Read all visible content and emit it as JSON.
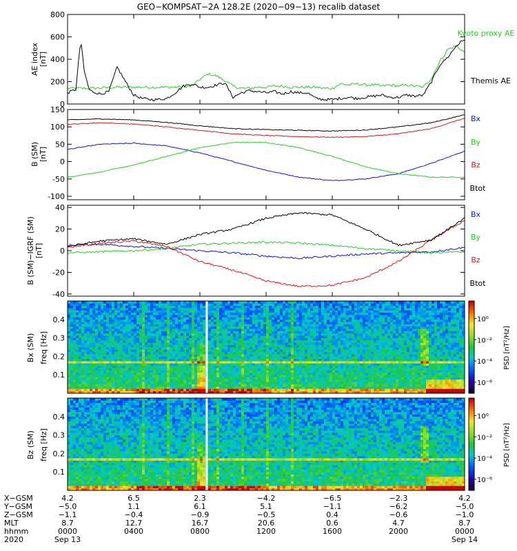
{
  "title": "GEO−KOMPSAT−2A 128.2E (2020−09−13) recalib dataset",
  "colors": {
    "black": "#000000",
    "red": "#dd1111",
    "green": "#22cc22",
    "blue": "#1111cc",
    "white": "#ffffff"
  },
  "chart_data": [
    {
      "id": "ae",
      "type": "line",
      "ylabel": "AE index",
      "yunit": "[nT]",
      "ylim": [
        0,
        800
      ],
      "yticks": [
        "0",
        "200",
        "400",
        "600",
        "800"
      ],
      "xlim": [
        0,
        24
      ],
      "series": [
        {
          "name": "Kyoto proxy AE",
          "color": "#22cc22",
          "x": [
            0,
            1.5,
            3,
            4.5,
            5.5,
            6.5,
            7.5,
            8,
            8.5,
            9,
            9.5,
            10,
            10.5,
            11,
            11.5,
            12,
            12.5,
            13,
            13.5,
            14,
            14.5,
            15,
            15.5,
            16,
            16.5,
            17,
            17.5,
            18,
            18.5,
            19,
            19.5,
            20,
            20.5,
            21,
            21.5,
            22,
            22.5,
            23,
            23.5,
            24
          ],
          "y": [
            140,
            140,
            150,
            150,
            150,
            150,
            160,
            220,
            270,
            250,
            210,
            160,
            140,
            140,
            150,
            150,
            160,
            160,
            150,
            150,
            150,
            150,
            140,
            140,
            180,
            170,
            180,
            170,
            170,
            160,
            170,
            160,
            170,
            160,
            150,
            230,
            380,
            490,
            520,
            460
          ]
        },
        {
          "name": "Themis AE",
          "color": "#000000",
          "x": [
            0,
            0.5,
            0.8,
            1,
            1.3,
            1.5,
            2,
            2.5,
            3,
            3.5,
            4,
            4.5,
            5,
            5.5,
            6,
            6.5,
            7,
            7.5,
            8,
            8.5,
            9,
            9.5,
            10,
            10.5,
            11,
            11.5,
            12,
            12.5,
            13,
            13.5,
            14,
            14.5,
            15,
            15.5,
            16,
            16.5,
            17,
            17.5,
            18,
            18.5,
            19,
            19.5,
            20,
            20.5,
            21,
            21.5,
            22,
            22.5,
            23,
            23.5,
            24
          ],
          "y": [
            100,
            130,
            580,
            300,
            130,
            110,
            90,
            110,
            330,
            200,
            80,
            50,
            40,
            40,
            50,
            100,
            160,
            180,
            150,
            150,
            170,
            190,
            60,
            100,
            120,
            110,
            100,
            110,
            90,
            110,
            100,
            100,
            50,
            40,
            40,
            50,
            60,
            50,
            60,
            70,
            80,
            60,
            60,
            80,
            70,
            80,
            200,
            350,
            420,
            520,
            580
          ]
        }
      ]
    },
    {
      "id": "b_sm",
      "type": "line",
      "ylabel": "B (SM)",
      "yunit": "[nT]",
      "ylim": [
        -110,
        150
      ],
      "yticks": [
        "-100",
        "-50",
        "0",
        "50",
        "100",
        "150"
      ],
      "xlim": [
        0,
        24
      ],
      "series": [
        {
          "name": "Bx",
          "color": "#1111cc",
          "x": [
            0,
            2,
            4,
            6,
            8,
            10,
            12,
            14,
            16,
            18,
            20,
            22,
            24
          ],
          "y": [
            35,
            50,
            53,
            45,
            25,
            0,
            -25,
            -45,
            -55,
            -50,
            -35,
            -5,
            30
          ]
        },
        {
          "name": "By",
          "color": "#22cc22",
          "x": [
            0,
            2,
            4,
            6,
            8,
            10,
            12,
            14,
            16,
            18,
            20,
            22,
            24
          ],
          "y": [
            -45,
            -30,
            -10,
            15,
            40,
            55,
            55,
            40,
            15,
            -15,
            -35,
            -45,
            -45
          ]
        },
        {
          "name": "Bz",
          "color": "#dd1111",
          "x": [
            0,
            2,
            4,
            6,
            8,
            10,
            12,
            14,
            16,
            18,
            20,
            22,
            24
          ],
          "y": [
            107,
            112,
            108,
            100,
            90,
            80,
            75,
            72,
            70,
            72,
            80,
            95,
            125
          ]
        },
        {
          "name": "Btot",
          "color": "#000000",
          "x": [
            0,
            2,
            4,
            6,
            8,
            10,
            12,
            14,
            16,
            18,
            20,
            22,
            24
          ],
          "y": [
            120,
            123,
            120,
            113,
            103,
            95,
            92,
            90,
            88,
            91,
            100,
            112,
            135
          ]
        }
      ]
    },
    {
      "id": "db_sm",
      "type": "line",
      "ylabel": "B (SM)−IGRF (SM)",
      "yunit": "[nT]",
      "ylim": [
        -42,
        42
      ],
      "yticks": [
        "-40",
        "-20",
        "0",
        "20",
        "40"
      ],
      "xlim": [
        0,
        24
      ],
      "series": [
        {
          "name": "Bx",
          "color": "#1111cc",
          "x": [
            0,
            2,
            4,
            6,
            8,
            10,
            12,
            14,
            16,
            18,
            20,
            22,
            24
          ],
          "y": [
            5,
            6,
            4,
            2,
            0,
            -2,
            -5,
            -7,
            -5,
            -3,
            -2,
            -1,
            3
          ]
        },
        {
          "name": "By",
          "color": "#22cc22",
          "x": [
            0,
            2,
            4,
            6,
            8,
            10,
            12,
            14,
            16,
            18,
            20,
            22,
            24
          ],
          "y": [
            -2,
            -1,
            0,
            2,
            6,
            7,
            8,
            7,
            5,
            2,
            0,
            -2,
            -1
          ]
        },
        {
          "name": "Bz",
          "color": "#dd1111",
          "x": [
            0,
            2,
            4,
            6,
            8,
            10,
            12,
            14,
            16,
            18,
            20,
            22,
            24
          ],
          "y": [
            3,
            7,
            9,
            4,
            -10,
            -18,
            -28,
            -33,
            -32,
            -25,
            -10,
            10,
            28
          ]
        },
        {
          "name": "Btot",
          "color": "#000000",
          "x": [
            0,
            2,
            4,
            6,
            8,
            10,
            12,
            14,
            16,
            18,
            20,
            22,
            24
          ],
          "y": [
            4,
            9,
            11,
            6,
            15,
            20,
            30,
            35,
            33,
            20,
            5,
            10,
            30
          ]
        }
      ]
    },
    {
      "id": "bx_psd",
      "type": "heatmap",
      "ylabel": "Bx (SM)",
      "yunit": "freq [Hz]",
      "ylim": [
        0,
        0.5
      ],
      "yticks": [
        "0.1",
        "0.2",
        "0.3",
        "0.4"
      ],
      "xlim": [
        0,
        24
      ],
      "colorbar_label": "PSD [nT²/Hz]",
      "colorbar_ticks": [
        "10⁰",
        "10⁻²",
        "10⁻⁴",
        "10⁻⁶"
      ]
    },
    {
      "id": "bz_psd",
      "type": "heatmap",
      "ylabel": "Bz (SM)",
      "yunit": "freq [Hz]",
      "ylim": [
        0,
        0.5
      ],
      "yticks": [
        "0.1",
        "0.2",
        "0.3",
        "0.4"
      ],
      "xlim": [
        0,
        24
      ],
      "colorbar_label": "PSD [nT²/Hz]",
      "colorbar_ticks": [
        "10⁰",
        "10⁻²",
        "10⁻⁴",
        "10⁻⁶"
      ]
    }
  ],
  "legends": {
    "ae": [
      "Kyoto proxy AE",
      "Themis AE"
    ],
    "b": [
      "Bx",
      "By",
      "Bz",
      "Btot"
    ]
  },
  "xaxis": {
    "row_labels": [
      "X−GSM",
      "Y−GSM",
      "Z−GSM",
      "MLT",
      "hhmm",
      "2020"
    ],
    "ticks_hours": [
      0,
      4,
      8,
      12,
      16,
      20,
      24
    ],
    "columns": [
      {
        "x": "4.2",
        "y": "−5.0",
        "z": "−1.1",
        "mlt": "8.7",
        "hhmm": "0000",
        "date": "Sep 13"
      },
      {
        "x": "6.5",
        "y": "1.1",
        "z": "−0.4",
        "mlt": "12.7",
        "hhmm": "0400",
        "date": ""
      },
      {
        "x": "2.3",
        "y": "6.1",
        "z": "−0.9",
        "mlt": "16.7",
        "hhmm": "0800",
        "date": ""
      },
      {
        "x": "−4.2",
        "y": "5.1",
        "z": "−0.5",
        "mlt": "20.6",
        "hhmm": "1200",
        "date": ""
      },
      {
        "x": "−6.5",
        "y": "−1.1",
        "z": "0.4",
        "mlt": "0.6",
        "hhmm": "1600",
        "date": ""
      },
      {
        "x": "−2.3",
        "y": "−6.2",
        "z": "−0.6",
        "mlt": "4.7",
        "hhmm": "2000",
        "date": ""
      },
      {
        "x": "4.2",
        "y": "−5.0",
        "z": "−1.0",
        "mlt": "8.7",
        "hhmm": "0000",
        "date": "Sep 14"
      }
    ]
  }
}
